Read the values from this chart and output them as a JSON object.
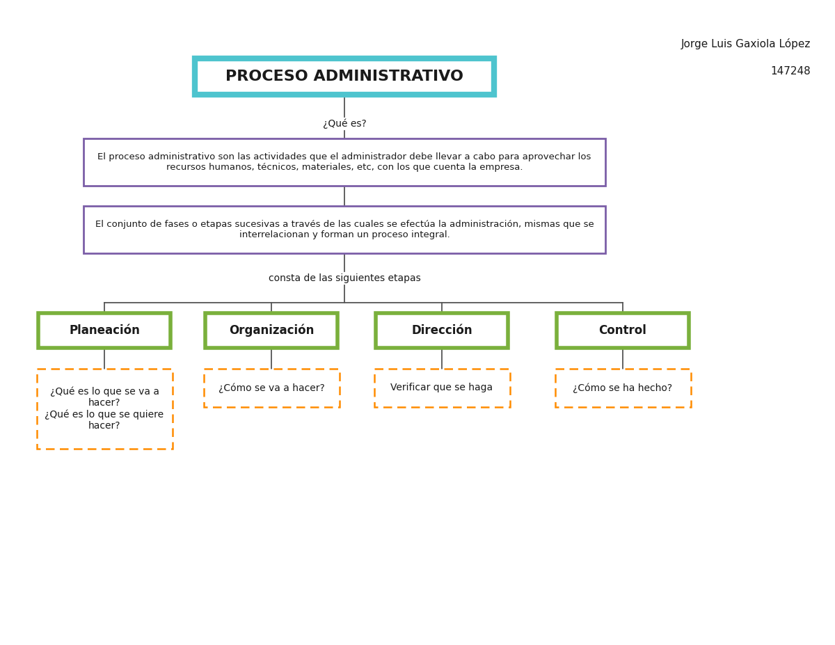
{
  "title": "PROCESO ADMINISTRATIVO",
  "author": "Jorge Luis Gaxiola López",
  "student_id": "147248",
  "title_border_color": "#4EC4CE",
  "title_fontsize": 16,
  "que_es_label": "¿Qué es?",
  "def1_text": "El proceso administrativo son las actividades que el administrador debe llevar a cabo para aprovechar los\nrecursos humanos, técnicos, materiales, etc, con los que cuenta la empresa.",
  "def1_border_color": "#7B5EA7",
  "def2_text": "El conjunto de fases o etapas sucesivas a través de las cuales se efectúa la administración, mismas que se\ninterrelacionan y forman un proceso integral.",
  "def2_border_color": "#7B5EA7",
  "etapas_label": "consta de las siguientes etapas",
  "stages": [
    "Planeación",
    "Organización",
    "Dirección",
    "Control"
  ],
  "stage_border_color": "#7AB03C",
  "sub_texts": [
    "¿Qué es lo que se va a\nhacer?\n¿Qué es lo que se quiere\nhacer?",
    "¿Cómo se va a hacer?",
    "Verificar que se haga",
    "¿Cómo se ha hecho?"
  ],
  "sub_border_color": "#FF8C00",
  "bg_color": "#ffffff",
  "line_color": "#555555",
  "text_color": "#1a1a1a"
}
